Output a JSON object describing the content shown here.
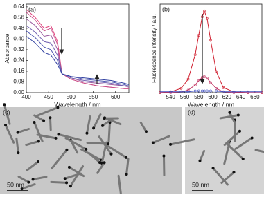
{
  "chart_data": [
    {
      "type": "line",
      "panel": "(a)",
      "xlabel": "Wavelength / nm",
      "ylabel": "Absorbance",
      "x": [
        400,
        420,
        440,
        455,
        470,
        480,
        500,
        530,
        560,
        590,
        620,
        630
      ],
      "xlim": [
        400,
        630
      ],
      "xticks": [
        400,
        450,
        500,
        550,
        600
      ],
      "ylim": [
        0,
        0.66
      ],
      "yticks": [
        {
          "value": 0,
          "label": "0.00"
        },
        {
          "value": 0.08,
          "label": "0.08"
        },
        {
          "value": 0.16,
          "label": "0.16"
        },
        {
          "value": 0.24,
          "label": "0.24"
        },
        {
          "value": 0.32,
          "label": "0.32"
        },
        {
          "value": 0.4,
          "label": "0.40"
        },
        {
          "value": 0.48,
          "label": "0.48"
        },
        {
          "value": 0.56,
          "label": "0.56"
        },
        {
          "value": 0.64,
          "label": "0.64"
        }
      ],
      "series": [
        {
          "color": "#e0407a",
          "values": [
            0.62,
            0.56,
            0.48,
            0.5,
            0.38,
            0.14,
            0.1,
            0.07,
            0.05,
            0.04,
            0.03,
            0.03
          ]
        },
        {
          "color": "#c8508a",
          "values": [
            0.6,
            0.54,
            0.46,
            0.48,
            0.36,
            0.14,
            0.1,
            0.07,
            0.05,
            0.04,
            0.03,
            0.03
          ]
        },
        {
          "color": "#9a5ca0",
          "values": [
            0.55,
            0.5,
            0.42,
            0.43,
            0.32,
            0.14,
            0.11,
            0.08,
            0.07,
            0.06,
            0.05,
            0.04
          ]
        },
        {
          "color": "#7060b0",
          "values": [
            0.5,
            0.45,
            0.38,
            0.37,
            0.28,
            0.14,
            0.11,
            0.09,
            0.08,
            0.07,
            0.05,
            0.05
          ]
        },
        {
          "color": "#5058b0",
          "values": [
            0.46,
            0.41,
            0.34,
            0.32,
            0.24,
            0.14,
            0.12,
            0.1,
            0.09,
            0.08,
            0.06,
            0.05
          ]
        },
        {
          "color": "#3040a0",
          "values": [
            0.42,
            0.37,
            0.3,
            0.28,
            0.21,
            0.14,
            0.12,
            0.11,
            0.1,
            0.09,
            0.07,
            0.06
          ]
        }
      ]
    },
    {
      "type": "line",
      "panel": "(b)",
      "xlabel": "Wavelength / nm",
      "ylabel": "Fluorescence intensity / a.u.",
      "markers": true,
      "x": [
        525,
        540,
        555,
        565,
        575,
        580,
        585,
        588,
        592,
        597,
        605,
        615,
        630,
        650,
        670
      ],
      "xlim": [
        525,
        670
      ],
      "xticks": [
        540,
        560,
        580,
        600,
        620,
        640,
        660
      ],
      "ylim": [
        0,
        1.05
      ],
      "series": [
        {
          "color": "#d02030",
          "values": [
            0,
            0.01,
            0.05,
            0.16,
            0.45,
            0.68,
            0.9,
            0.97,
            0.88,
            0.62,
            0.25,
            0.06,
            0.01,
            0,
            0
          ]
        },
        {
          "color": "#c03060",
          "values": [
            0,
            0,
            0.01,
            0.03,
            0.09,
            0.14,
            0.18,
            0.19,
            0.17,
            0.12,
            0.05,
            0.01,
            0,
            0,
            0
          ]
        },
        {
          "color": "#4050c0",
          "values": [
            0.01,
            0.01,
            0.01,
            0.01,
            0.02,
            0.02,
            0.02,
            0.02,
            0.02,
            0.02,
            0.02,
            0.01,
            0.01,
            0.01,
            0.01
          ]
        }
      ]
    }
  ],
  "images": [
    {
      "panel": "(c)",
      "scale": "50 nm"
    },
    {
      "panel": "(d)",
      "scale": "50 nm"
    }
  ]
}
